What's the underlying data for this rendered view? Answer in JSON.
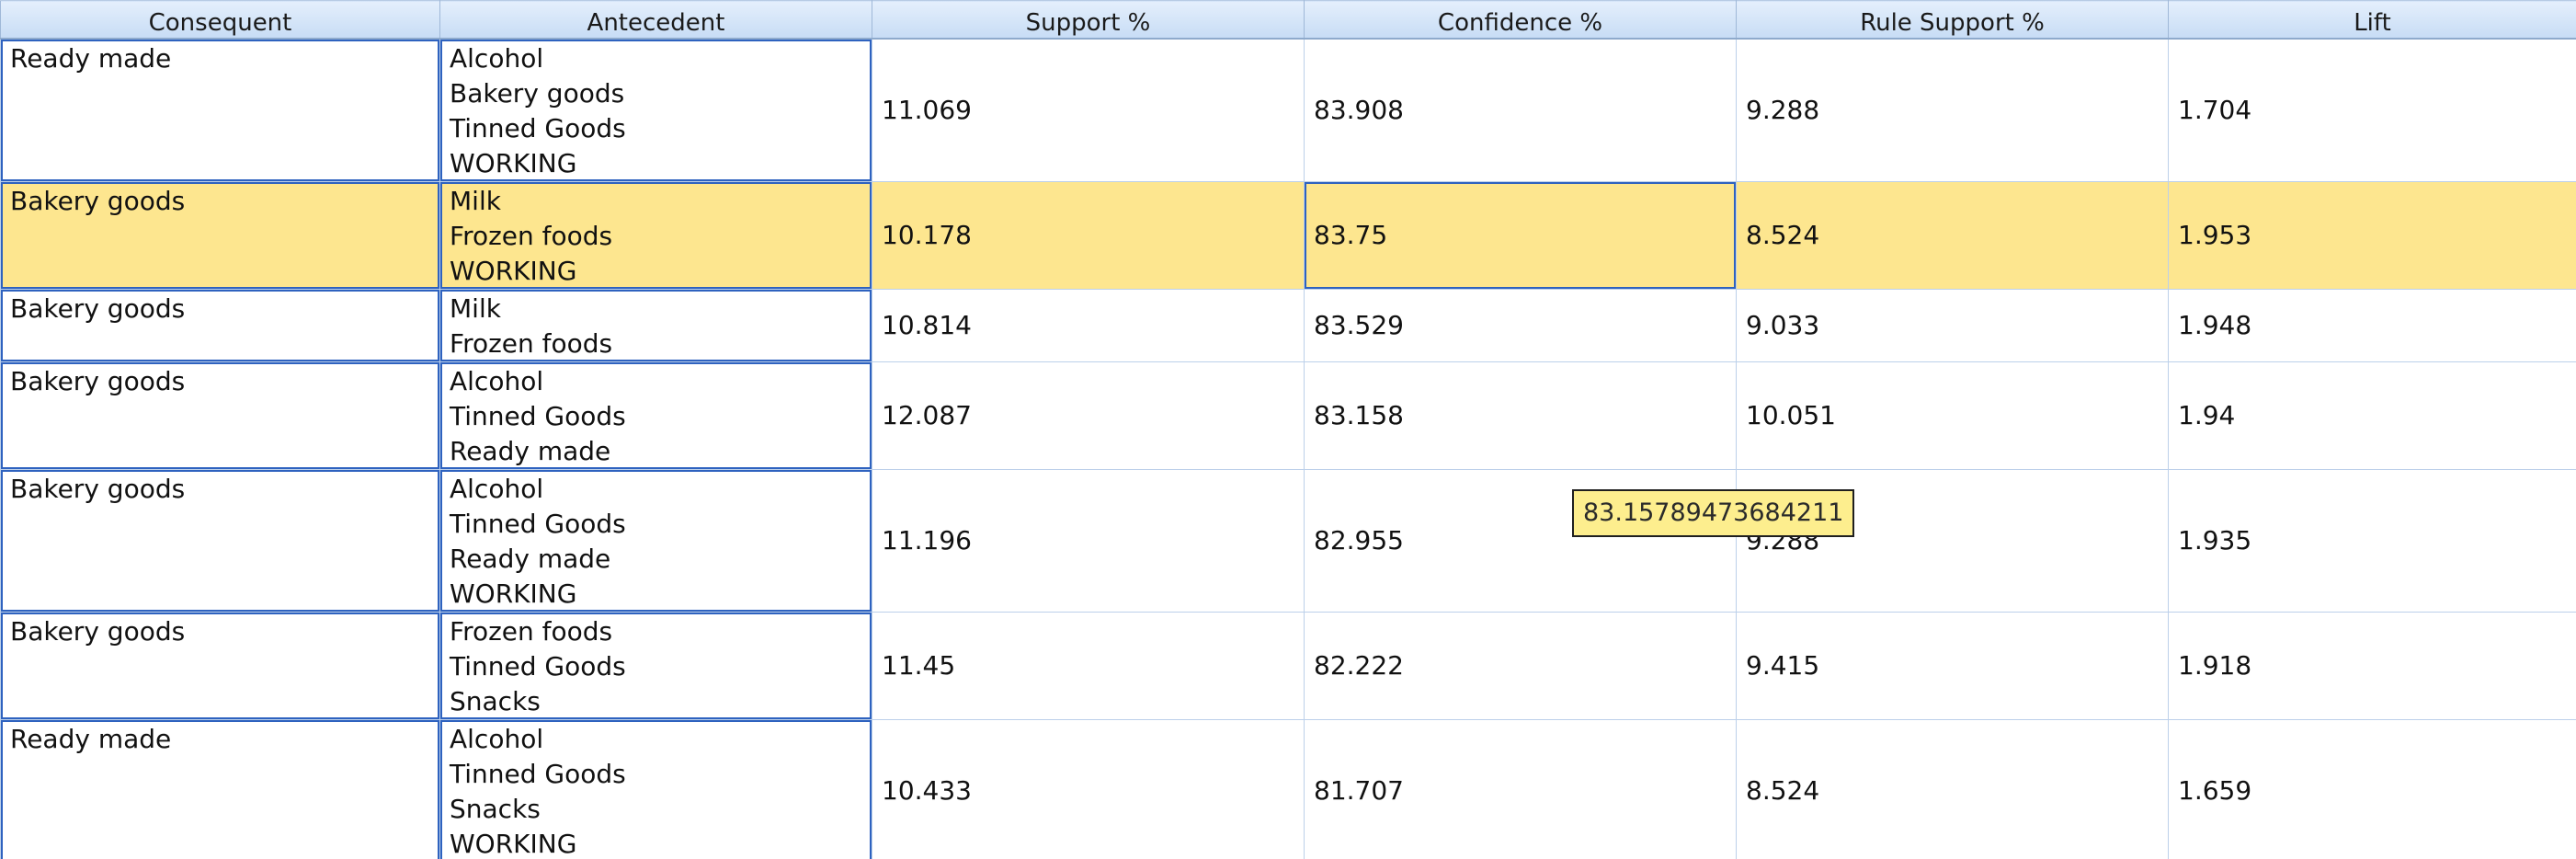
{
  "table": {
    "columns": [
      "Consequent",
      "Antecedent",
      "Support %",
      "Confidence %",
      "Rule Support %",
      "Lift"
    ],
    "rows": [
      {
        "consequent": "Ready made",
        "antecedent": [
          "Alcohol",
          "Bakery goods",
          "Tinned Goods",
          "WORKING"
        ],
        "support": "11.069",
        "confidence": "83.908",
        "rule_support": "9.288",
        "lift": "1.704"
      },
      {
        "consequent": "Bakery goods",
        "antecedent": [
          "Milk",
          "Frozen foods",
          "WORKING"
        ],
        "support": "10.178",
        "confidence": "83.75",
        "rule_support": "8.524",
        "lift": "1.953"
      },
      {
        "consequent": "Bakery goods",
        "antecedent": [
          "Milk",
          "Frozen foods"
        ],
        "support": "10.814",
        "confidence": "83.529",
        "rule_support": "9.033",
        "lift": "1.948"
      },
      {
        "consequent": "Bakery goods",
        "antecedent": [
          "Alcohol",
          "Tinned Goods",
          "Ready made"
        ],
        "support": "12.087",
        "confidence": "83.158",
        "rule_support": "10.051",
        "lift": "1.94"
      },
      {
        "consequent": "Bakery goods",
        "antecedent": [
          "Alcohol",
          "Tinned Goods",
          "Ready made",
          "WORKING"
        ],
        "support": "11.196",
        "confidence": "82.955",
        "rule_support": "9.288",
        "lift": "1.935"
      },
      {
        "consequent": "Bakery goods",
        "antecedent": [
          "Frozen foods",
          "Tinned Goods",
          "Snacks"
        ],
        "support": "11.45",
        "confidence": "82.222",
        "rule_support": "9.415",
        "lift": "1.918"
      },
      {
        "consequent": "Ready made",
        "antecedent": [
          "Alcohol",
          "Tinned Goods",
          "Snacks",
          "WORKING"
        ],
        "support": "10.433",
        "confidence": "81.707",
        "rule_support": "8.524",
        "lift": "1.659"
      }
    ],
    "selected_row": 1,
    "focused_column": 3
  },
  "tooltip": {
    "text": "83.15789473684211"
  },
  "colors": {
    "header_bg": "#c7dcf5",
    "selection": "#fde68f",
    "focus_border": "#2e62bf",
    "tooltip_bg": "#fdee8e"
  }
}
